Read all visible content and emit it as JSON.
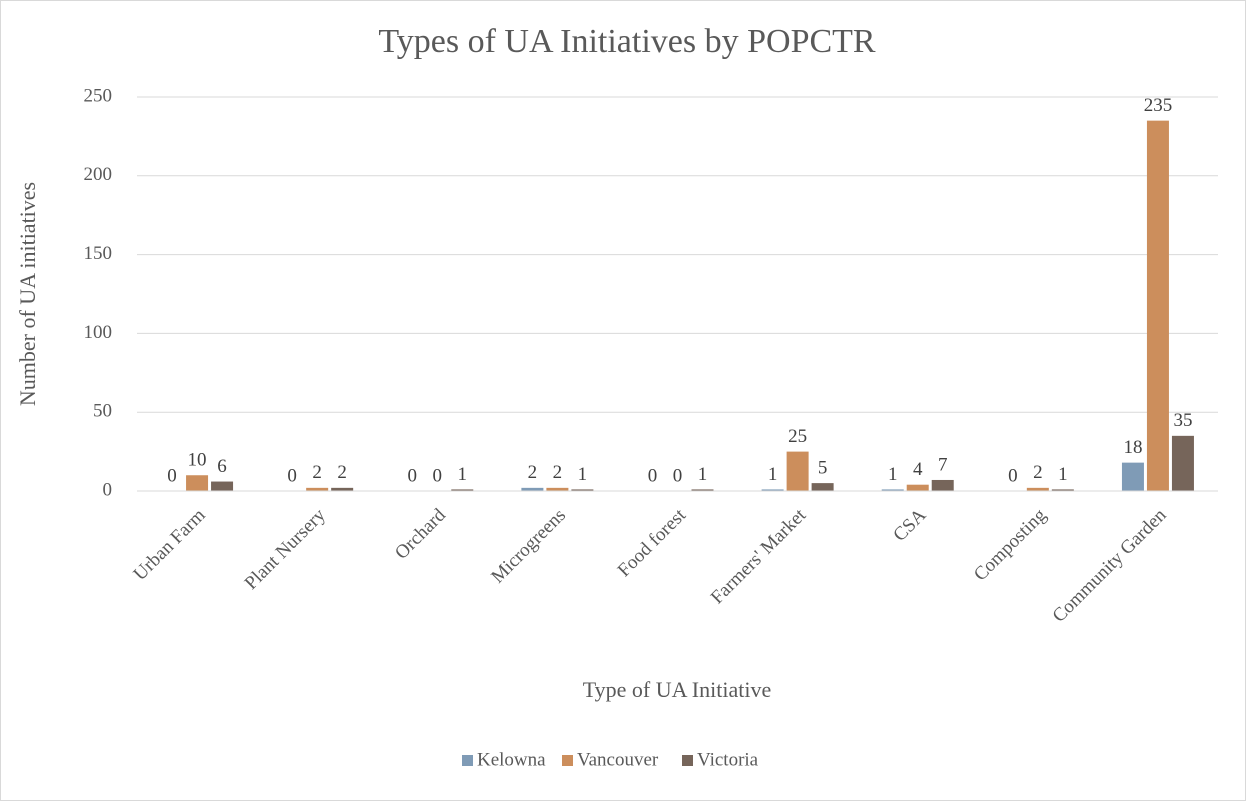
{
  "chart_data": {
    "type": "bar",
    "title": "Types of UA Initiatives by POPCTR",
    "x_label": "Type of UA Initiative",
    "y_label": "Number of UA initiatives",
    "categories": [
      "Urban Farm",
      "Plant Nursery",
      "Orchard",
      "Microgreens",
      "Food forest",
      "Farmers' Market",
      "CSA",
      "Composting",
      "Community Garden"
    ],
    "series": [
      {
        "name": "Kelowna",
        "color": "#7f9bb6",
        "values": [
          0,
          0,
          0,
          2,
          0,
          1,
          1,
          0,
          18
        ]
      },
      {
        "name": "Vancouver",
        "color": "#cc8e5c",
        "values": [
          10,
          2,
          0,
          2,
          0,
          25,
          4,
          2,
          235
        ]
      },
      {
        "name": "Victoria",
        "color": "#76655a",
        "values": [
          6,
          2,
          1,
          1,
          1,
          5,
          7,
          1,
          35
        ]
      }
    ],
    "ylim": [
      0,
      250
    ],
    "yticks": [
      0,
      50,
      100,
      150,
      200,
      250
    ],
    "grid": true,
    "legend": "bottom"
  }
}
